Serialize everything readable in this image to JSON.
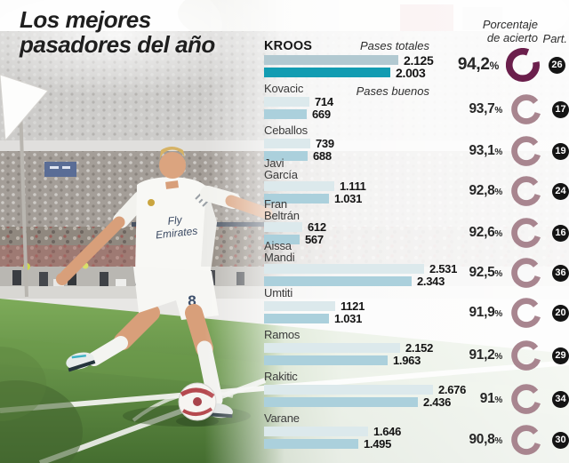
{
  "title": {
    "line1": "Los mejores",
    "line2": "pasadores del año"
  },
  "headers": {
    "pases_totales": "Pases totales",
    "pases_buenos": "Pases buenos",
    "porcentaje": "Porcentaje\nde acierto",
    "part": "Part.",
    "percent_sign": "%"
  },
  "chart_data": {
    "type": "bar",
    "title": "Los mejores pasadores del año",
    "series_labels": [
      "Pases totales",
      "Pases buenos"
    ],
    "value_axis_max": 2676,
    "legend_position": "inline-first-row",
    "rows": [
      {
        "name": "KROOS",
        "total": 2125,
        "total_label": "2.125",
        "good": 2003,
        "good_label": "2.003",
        "accuracy_pct": "94,2",
        "appearances": "26",
        "highlight": true
      },
      {
        "name": "Kovacic",
        "total": 714,
        "total_label": "714",
        "good": 669,
        "good_label": "669",
        "accuracy_pct": "93,7",
        "appearances": "17",
        "highlight": false
      },
      {
        "name": "Ceballos",
        "total": 739,
        "total_label": "739",
        "good": 688,
        "good_label": "688",
        "accuracy_pct": "93,1",
        "appearances": "19",
        "highlight": false
      },
      {
        "name": "Javi\nGarcía",
        "total": 1111,
        "total_label": "1.111",
        "good": 1031,
        "good_label": "1.031",
        "accuracy_pct": "92,8",
        "appearances": "24",
        "highlight": false
      },
      {
        "name": "Fran\nBeltrán",
        "total": 612,
        "total_label": "612",
        "good": 567,
        "good_label": "567",
        "accuracy_pct": "92,6",
        "appearances": "16",
        "highlight": false
      },
      {
        "name": "Aissa\nMandi",
        "total": 2531,
        "total_label": "2.531",
        "good": 2343,
        "good_label": "2.343",
        "accuracy_pct": "92,5",
        "appearances": "36",
        "highlight": false
      },
      {
        "name": "Umtiti",
        "total": 1121,
        "total_label": "1121",
        "good": 1031,
        "good_label": "1.031",
        "accuracy_pct": "91,9",
        "appearances": "20",
        "highlight": false
      },
      {
        "name": "Ramos",
        "total": 2152,
        "total_label": "2.152",
        "good": 1963,
        "good_label": "1.963",
        "accuracy_pct": "91,2",
        "appearances": "29",
        "highlight": false
      },
      {
        "name": "Rakitic",
        "total": 2676,
        "total_label": "2.676",
        "good": 2436,
        "good_label": "2.436",
        "accuracy_pct": "91",
        "appearances": "34",
        "highlight": false
      },
      {
        "name": "Varane",
        "total": 1646,
        "total_label": "1.646",
        "good": 1495,
        "good_label": "1.495",
        "accuracy_pct": "90,8",
        "appearances": "30",
        "highlight": false
      }
    ]
  },
  "photo": {
    "shirt_sponsor_line1": "Fly",
    "shirt_sponsor_line2": "Emirates",
    "shorts_number": "8"
  },
  "colors": {
    "bar_total": "#dce9ec",
    "bar_good": "#abd0dc",
    "bar_total_hl": "#b2c9d1",
    "bar_good_hl": "#129cb2",
    "ring": "#a8858f",
    "ring_hl": "#6b1f4c",
    "badge_bg": "#141414",
    "badge_text": "#ffffff",
    "grass": "#5f8f45",
    "seam_red": "#b5494f"
  }
}
